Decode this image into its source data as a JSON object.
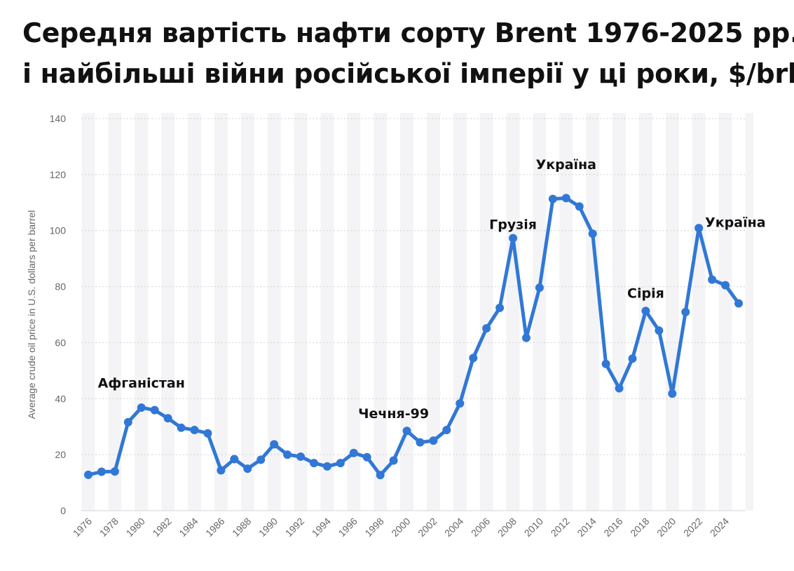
{
  "title": {
    "line1": "Середня вартість нафти сорту Brent 1976-2025 рр.",
    "line2": "і найбільші війни російської імперії у ці роки, $/brl"
  },
  "chart_data": {
    "type": "line",
    "ylabel": "Average crude oil price in U.S. dollars per barrel",
    "ylim": [
      0,
      140
    ],
    "yticks": [
      0,
      20,
      40,
      60,
      80,
      100,
      120,
      140
    ],
    "xticks": [
      "1976",
      "1978",
      "1980",
      "1982",
      "1984",
      "1986",
      "1988",
      "1990",
      "1992",
      "1994",
      "1996",
      "1998",
      "2000",
      "2002",
      "2004",
      "2006",
      "2008",
      "2010",
      "2012",
      "2014",
      "2016",
      "2018",
      "2020",
      "2022",
      "2024"
    ],
    "grid": true,
    "x": [
      1976,
      1977,
      1978,
      1979,
      1980,
      1981,
      1982,
      1983,
      1984,
      1985,
      1986,
      1987,
      1988,
      1989,
      1990,
      1991,
      1992,
      1993,
      1994,
      1995,
      1996,
      1997,
      1998,
      1999,
      2000,
      2001,
      2002,
      2003,
      2004,
      2005,
      2006,
      2007,
      2008,
      2009,
      2010,
      2011,
      2012,
      2013,
      2014,
      2015,
      2016,
      2017,
      2018,
      2019,
      2020,
      2021,
      2022,
      2023,
      2024,
      2025
    ],
    "series": [
      {
        "color": "#3178d6",
        "values": [
          12.8,
          13.9,
          14.0,
          31.6,
          36.8,
          35.9,
          33.0,
          29.6,
          28.8,
          27.6,
          14.4,
          18.4,
          15.0,
          18.2,
          23.7,
          20.0,
          19.3,
          17.0,
          15.8,
          17.0,
          20.6,
          19.1,
          12.7,
          17.9,
          28.5,
          24.4,
          25.0,
          28.8,
          38.3,
          54.5,
          65.1,
          72.4,
          97.3,
          61.7,
          79.6,
          111.3,
          111.6,
          108.6,
          98.9,
          52.4,
          43.7,
          54.3,
          71.3,
          64.3,
          41.8,
          70.9,
          100.9,
          82.5,
          80.5,
          74.0
        ]
      }
    ],
    "annotations": [
      {
        "label": "Афганістан",
        "year": 1980,
        "value": 44
      },
      {
        "label": "Чечня-99",
        "year": 1999,
        "value": 33
      },
      {
        "label": "Грузія",
        "year": 2008,
        "value": 100.5
      },
      {
        "label": "Україна",
        "year": 2012,
        "value": 122
      },
      {
        "label": "Сірія",
        "year": 2018,
        "value": 76
      },
      {
        "label": "Україна",
        "year": 2023,
        "value": 101.3
      }
    ]
  }
}
